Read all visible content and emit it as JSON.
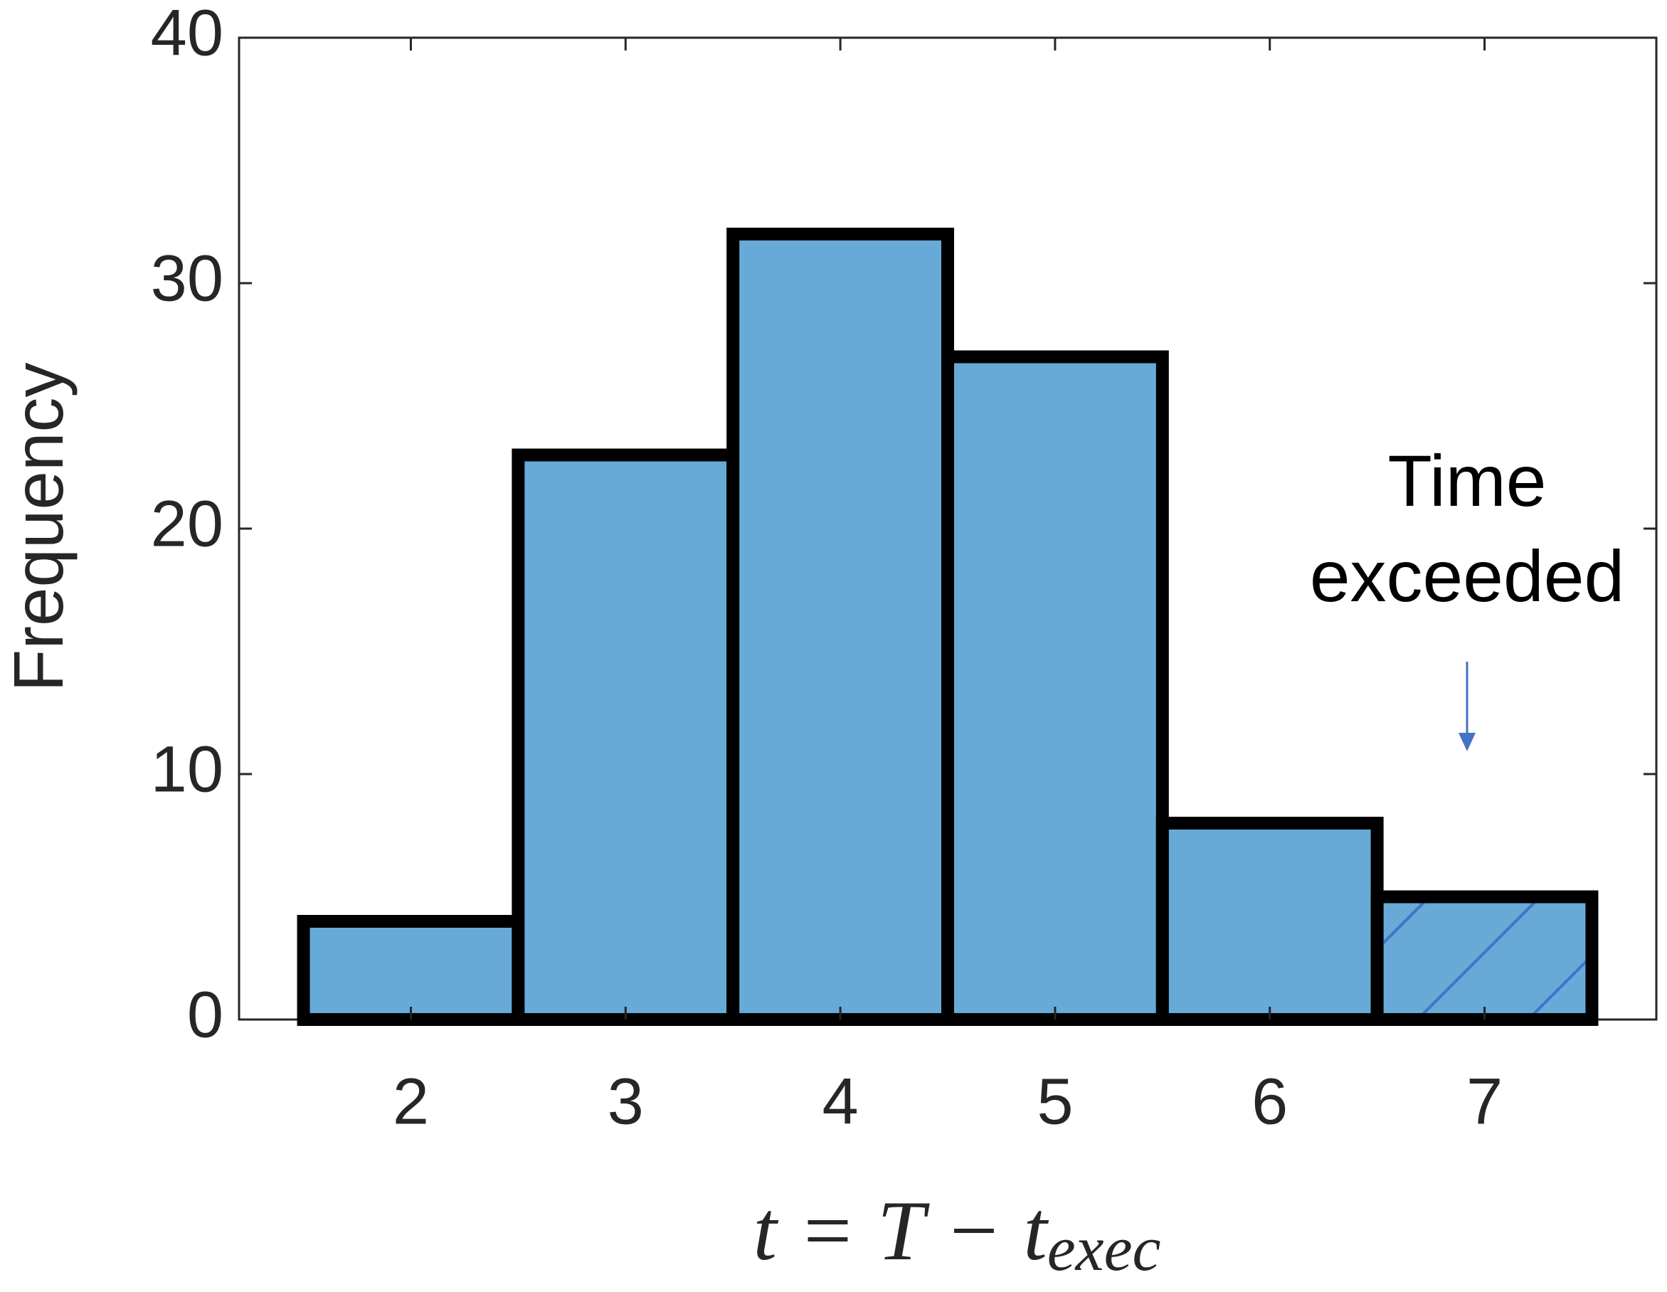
{
  "chart_data": {
    "type": "histogram",
    "bins": [
      1.5,
      2.5,
      3.5,
      4.5,
      5.5,
      6.5,
      7.5
    ],
    "values": [
      4,
      23,
      32,
      27,
      8,
      5
    ],
    "color": "#67aad7",
    "xlim": [
      1.2,
      7.8
    ],
    "xticks": [
      2,
      3,
      4,
      5,
      6,
      7
    ],
    "ylim": [
      0,
      40
    ],
    "yticks": [
      0,
      10,
      20,
      30,
      40
    ],
    "ylabel": "Frequency",
    "xlabel": "t = T − t",
    "xlabel_subscript": "exec",
    "annotation": [
      "Time",
      "exceeded"
    ],
    "grid": false
  }
}
